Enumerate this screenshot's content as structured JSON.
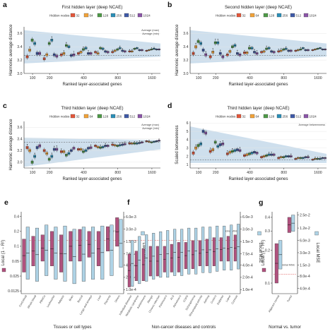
{
  "chart_data": [
    {
      "panel": "a",
      "type": "box",
      "title": "First hidden layer (deep NCAE)",
      "xlabel": "Ranked layer-associated genes",
      "ylabel": "Harmonic average distance",
      "xticks": [
        "100",
        "200",
        "400",
        "800",
        "1600"
      ],
      "yticks": [
        "3.0",
        "3.2",
        "3.4",
        "3.6"
      ],
      "ylim": [
        3.0,
        3.7
      ],
      "legend_title": "Hidden nodes",
      "legend": [
        "32",
        "64",
        "128",
        "256",
        "512",
        "1024"
      ],
      "ref_labels": [
        "Average (max)",
        "Average (min)"
      ],
      "hline": 3.27,
      "band": {
        "start_lo": 3.15,
        "start_hi": 3.65,
        "end_lo": 3.25,
        "end_hi": 3.45
      },
      "series": [
        {
          "name": "32",
          "medians": [
            3.25,
            3.22,
            3.28,
            3.3,
            3.32,
            3.32,
            3.33,
            3.34
          ]
        },
        {
          "name": "64",
          "medians": [
            3.35,
            3.28,
            3.3,
            3.32,
            3.3,
            3.34,
            3.33,
            3.35
          ]
        },
        {
          "name": "128",
          "medians": [
            3.5,
            3.45,
            3.42,
            3.36,
            3.38,
            3.36,
            3.37,
            3.36
          ]
        },
        {
          "name": "256",
          "medians": [
            3.45,
            3.5,
            3.4,
            3.38,
            3.37,
            3.38,
            3.38,
            3.37
          ]
        },
        {
          "name": "512",
          "medians": [
            3.3,
            3.28,
            3.27,
            3.3,
            3.33,
            3.34,
            3.35,
            3.36
          ]
        },
        {
          "name": "1024",
          "medians": [
            3.3,
            3.26,
            3.28,
            3.3,
            3.32,
            3.33,
            3.35,
            3.36
          ]
        }
      ]
    },
    {
      "panel": "b",
      "type": "box",
      "title": "Second hidden layer (deep NCAE)",
      "xlabel": "Ranked layer-associated genes",
      "ylabel": "Harmonic average distance",
      "xticks": [
        "100",
        "200",
        "400",
        "800",
        "1600"
      ],
      "yticks": [
        "3.0",
        "3.2",
        "3.4",
        "3.6"
      ],
      "ylim": [
        3.0,
        3.7
      ],
      "legend_title": "Hidden nodes",
      "legend": [
        "32",
        "64",
        "128",
        "256",
        "512",
        "1024"
      ],
      "hline": 3.27,
      "band": {
        "start_lo": 3.15,
        "start_hi": 3.65,
        "end_lo": 3.25,
        "end_hi": 3.45
      },
      "series": [
        {
          "name": "32",
          "medians": [
            3.3,
            3.25,
            3.28,
            3.31,
            3.32,
            3.33,
            3.34,
            3.35
          ]
        },
        {
          "name": "64",
          "medians": [
            3.4,
            3.32,
            3.33,
            3.31,
            3.33,
            3.34,
            3.35,
            3.36
          ]
        },
        {
          "name": "128",
          "medians": [
            3.48,
            3.46,
            3.4,
            3.38,
            3.37,
            3.36,
            3.36,
            3.37
          ]
        },
        {
          "name": "256",
          "medians": [
            3.45,
            3.46,
            3.42,
            3.38,
            3.38,
            3.37,
            3.38,
            3.38
          ]
        },
        {
          "name": "512",
          "medians": [
            3.35,
            3.3,
            3.3,
            3.32,
            3.33,
            3.34,
            3.35,
            3.36
          ]
        },
        {
          "name": "1024",
          "medians": [
            3.28,
            3.25,
            3.28,
            3.3,
            3.32,
            3.34,
            3.35,
            3.36
          ]
        }
      ]
    },
    {
      "panel": "c",
      "type": "box",
      "title": "Third hidden layer (deep NCAE)",
      "xlabel": "Ranked layer-associated genes",
      "ylabel": "Harmonic average distance",
      "xticks": [
        "100",
        "200",
        "400",
        "800",
        "1600"
      ],
      "yticks": [
        "3.0",
        "3.2",
        "3.4",
        "3.6"
      ],
      "ylim": [
        2.9,
        3.7
      ],
      "legend_title": "Hidden nodes",
      "legend": [
        "32",
        "64",
        "128",
        "256",
        "512",
        "1024"
      ],
      "ref_labels": [
        "Average (max)",
        "Average (min)"
      ],
      "hline": 3.34,
      "band": {
        "start_lo": 2.92,
        "start_hi": 3.42,
        "end_lo": 3.22,
        "end_hi": 3.38
      },
      "series": [
        {
          "name": "32",
          "medians": [
            3.25,
            3.2,
            3.18,
            3.22,
            3.28,
            3.3,
            3.32,
            3.36
          ]
        },
        {
          "name": "64",
          "medians": [
            3.2,
            3.15,
            3.18,
            3.22,
            3.26,
            3.29,
            3.32,
            3.35
          ]
        },
        {
          "name": "128",
          "medians": [
            3.0,
            3.05,
            3.12,
            3.18,
            3.25,
            3.28,
            3.32,
            3.34
          ]
        },
        {
          "name": "256",
          "medians": [
            3.1,
            3.1,
            3.15,
            3.2,
            3.26,
            3.29,
            3.32,
            3.35
          ]
        },
        {
          "name": "512",
          "medians": [
            3.25,
            3.22,
            3.2,
            3.24,
            3.28,
            3.3,
            3.33,
            3.36
          ]
        },
        {
          "name": "1024",
          "medians": [
            3.28,
            3.22,
            3.24,
            3.25,
            3.28,
            3.31,
            3.34,
            3.37
          ]
        }
      ]
    },
    {
      "panel": "d",
      "type": "box",
      "title": "Third hidden layer (deep NCAE)",
      "xlabel": "Ranked layer-associated genes",
      "ylabel": "Scaled betweenness",
      "xticks": [
        "100",
        "200",
        "400",
        "800",
        "1600"
      ],
      "yticks": [
        "1",
        "2",
        "3",
        "4",
        "5",
        "6"
      ],
      "ylim": [
        0.6,
        6.2
      ],
      "legend_title": "Hidden nodes",
      "legend": [
        "32",
        "64",
        "128",
        "256",
        "512",
        "1024"
      ],
      "ref_labels": [
        "Average betweenness"
      ],
      "hline": 1.6,
      "band": {
        "start_lo": 1.2,
        "start_hi": 5.6,
        "end_lo": 1.2,
        "end_hi": 2.3
      },
      "series": [
        {
          "name": "32",
          "medians": [
            2.4,
            2.6,
            2.3,
            2.1,
            1.9,
            1.8,
            1.7,
            1.6
          ]
        },
        {
          "name": "64",
          "medians": [
            3.0,
            2.8,
            2.5,
            2.2,
            2.0,
            1.9,
            1.8,
            1.7
          ]
        },
        {
          "name": "128",
          "medians": [
            3.3,
            3.7,
            2.6,
            2.3,
            2.1,
            1.9,
            1.8,
            1.7
          ]
        },
        {
          "name": "256",
          "medians": [
            3.5,
            3.2,
            2.7,
            2.4,
            2.2,
            2.0,
            1.8,
            1.7
          ]
        },
        {
          "name": "512",
          "medians": [
            5.0,
            3.4,
            2.8,
            2.5,
            2.2,
            2.0,
            1.9,
            1.8
          ]
        },
        {
          "name": "1024",
          "medians": [
            4.8,
            3.5,
            2.7,
            2.4,
            2.2,
            2.0,
            1.9,
            1.8
          ]
        }
      ]
    },
    {
      "panel": "e",
      "type": "range",
      "xlabel": "Tissues or cell types",
      "ylabel_left": "Local (1 − R²)",
      "ylabel_right": "Local MSE",
      "yticks_left": [
        "0.0125",
        "0.025",
        "0.05",
        "0.1",
        "0.2",
        "0.4"
      ],
      "yticks_right": [
        "1.0e-4",
        "2.0e-4",
        "4.0e-4",
        "7.5e-4",
        "1.5e-3",
        "3.0e-3",
        "6.0e-3"
      ],
      "categories": [
        "Cord blood",
        "Whole blood",
        "PBMCs",
        "Leukocytes",
        "Adipose",
        "Brain",
        "Buccal",
        "Lungs and airways",
        "Liver",
        "Placenta",
        "Others"
      ],
      "ref_label": "Global MSE",
      "r2_ranges": [
        [
          0.03,
          0.14
        ],
        [
          0.04,
          0.16
        ],
        [
          0.05,
          0.17
        ],
        [
          0.04,
          0.2
        ],
        [
          0.03,
          0.17
        ],
        [
          0.05,
          0.2
        ],
        [
          0.05,
          0.22
        ],
        [
          0.06,
          0.2
        ],
        [
          0.04,
          0.2
        ],
        [
          0.08,
          0.25
        ],
        [
          0.1,
          0.38
        ]
      ],
      "mse_ranges": [
        [
          0.00018,
          0.0034
        ],
        [
          0.00016,
          0.0032
        ],
        [
          0.00022,
          0.0038
        ],
        [
          0.00018,
          0.0034
        ],
        [
          0.00016,
          0.0036
        ],
        [
          0.00014,
          0.003
        ],
        [
          0.00016,
          0.0034
        ],
        [
          0.00018,
          0.0034
        ],
        [
          0.00018,
          0.0036
        ],
        [
          0.00022,
          0.0038
        ],
        [
          0.00035,
          0.0052
        ]
      ]
    },
    {
      "panel": "f",
      "type": "range",
      "xlabel": "Non-cancer diseases and controls",
      "ylabel_right": "Local MSE",
      "yticks_right": [
        "1.0e-4",
        "2.0e-4",
        "4.0e-4",
        "7.5e-4",
        "1.5e-3",
        "3.0e-3",
        "6.0e-3"
      ],
      "categories": [
        "Individual diseases",
        "Metabolic syndrome",
        "Autoimmune",
        "Allergic",
        "Chronic infection",
        "Parkinson's",
        "ALS",
        "Alzheimer's",
        "COPD",
        "Schizophrenia",
        "Rheumatoid arthritis",
        "Asthma",
        "Crohn's",
        "Diabetes",
        "Lupus",
        "Controls"
      ],
      "ref_label": "Global MSE",
      "r2_ranges": [
        [
          0.015,
          0.07
        ],
        [
          0.02,
          0.08
        ],
        [
          0.02,
          0.09
        ],
        [
          0.025,
          0.1
        ],
        [
          0.025,
          0.1
        ],
        [
          0.03,
          0.1
        ],
        [
          0.03,
          0.11
        ],
        [
          0.03,
          0.12
        ],
        [
          0.035,
          0.12
        ],
        [
          0.035,
          0.13
        ],
        [
          0.04,
          0.13
        ],
        [
          0.04,
          0.14
        ],
        [
          0.04,
          0.15
        ],
        [
          0.05,
          0.15
        ],
        [
          0.05,
          0.16
        ],
        [
          0.05,
          0.17
        ]
      ],
      "mse_ranges": [
        [
          0.00012,
          0.0016
        ],
        [
          0.00014,
          0.002
        ],
        [
          0.00016,
          0.0022
        ],
        [
          0.00018,
          0.0024
        ],
        [
          0.0002,
          0.0026
        ],
        [
          0.0002,
          0.0028
        ],
        [
          0.00022,
          0.003
        ],
        [
          0.00022,
          0.003
        ],
        [
          0.00024,
          0.0032
        ],
        [
          0.00024,
          0.0032
        ],
        [
          0.00026,
          0.0034
        ],
        [
          0.00026,
          0.0034
        ],
        [
          0.00028,
          0.0036
        ],
        [
          0.0003,
          0.0036
        ],
        [
          0.0003,
          0.0038
        ],
        [
          0.00032,
          0.004
        ]
      ]
    },
    {
      "panel": "g",
      "type": "range",
      "xlabel": "Normal vs. tumor",
      "ylabel_left": "Local (1 − R²)",
      "ylabel_right": "Local MSE",
      "yticks_left": [
        "0.1",
        "0.2",
        "0.3",
        "0.4"
      ],
      "yticks_right": [
        "4.0e-4",
        "8.0e-4",
        "1.5e-3",
        "3.0e-3",
        "6.0e-3",
        "1.2e-2",
        "2.5e-2"
      ],
      "categories": [
        "Adjacent normal",
        "Tumor"
      ],
      "ref_label": "Global MSE",
      "r2_ranges": [
        [
          0.1,
          0.23
        ],
        [
          0.29,
          0.4
        ]
      ],
      "mse_ranges": [
        [
          0.0012,
          0.006
        ],
        [
          0.01,
          0.025
        ]
      ]
    }
  ],
  "colors": {
    "legend": [
      "#e4573b",
      "#f2a33a",
      "#4e9a47",
      "#2b8fb8",
      "#3f5aa8",
      "#8b56a8"
    ],
    "band": "#c6d9ea",
    "r2_box": "#b0517e",
    "mse_box": "#aed3e6",
    "ref_mse": "#e06060"
  }
}
